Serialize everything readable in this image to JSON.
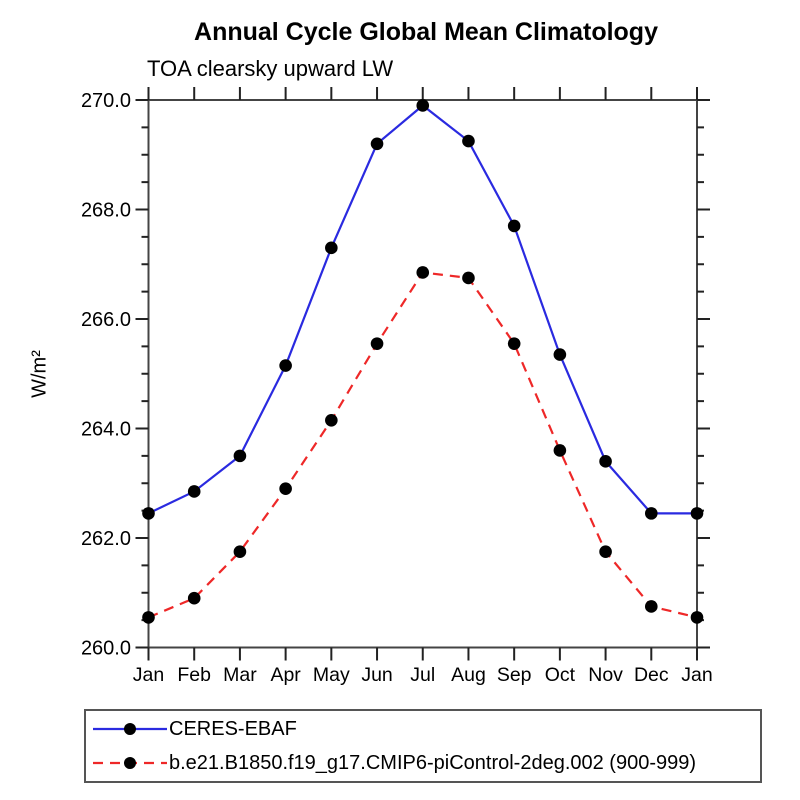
{
  "chart_data": {
    "type": "line",
    "title": "Annual Cycle Global Mean Climatology",
    "subtitle": "TOA clearsky upward LW",
    "ylabel": "W/m²",
    "xlabel": "",
    "categories": [
      "Jan",
      "Feb",
      "Mar",
      "Apr",
      "May",
      "Jun",
      "Jul",
      "Aug",
      "Sep",
      "Oct",
      "Nov",
      "Dec",
      "Jan"
    ],
    "series": [
      {
        "name": "CERES-EBAF",
        "line_style": "solid",
        "color": "#2a2ae0",
        "marker": "filled-circle",
        "marker_color": "#000000",
        "values": [
          262.45,
          262.85,
          263.5,
          265.15,
          267.3,
          269.2,
          269.9,
          269.25,
          267.7,
          265.35,
          263.4,
          262.45,
          262.45
        ]
      },
      {
        "name": "b.e21.B1850.f19_g17.CMIP6-piControl-2deg.002 (900-999)",
        "line_style": "dashed",
        "color": "#ee2828",
        "marker": "filled-circle",
        "marker_color": "#000000",
        "values": [
          260.55,
          260.9,
          261.75,
          262.9,
          264.15,
          265.55,
          266.85,
          266.75,
          265.55,
          263.6,
          261.75,
          260.75,
          260.55
        ]
      }
    ],
    "ylim": [
      260.0,
      270.0
    ],
    "ytick_labels": [
      "260.0",
      "262.0",
      "264.0",
      "266.0",
      "268.0",
      "270.0"
    ],
    "ytick_interval": 2.0,
    "minor_tick_interval": 0.5,
    "grid": false,
    "legend_position": "bottom-left"
  }
}
